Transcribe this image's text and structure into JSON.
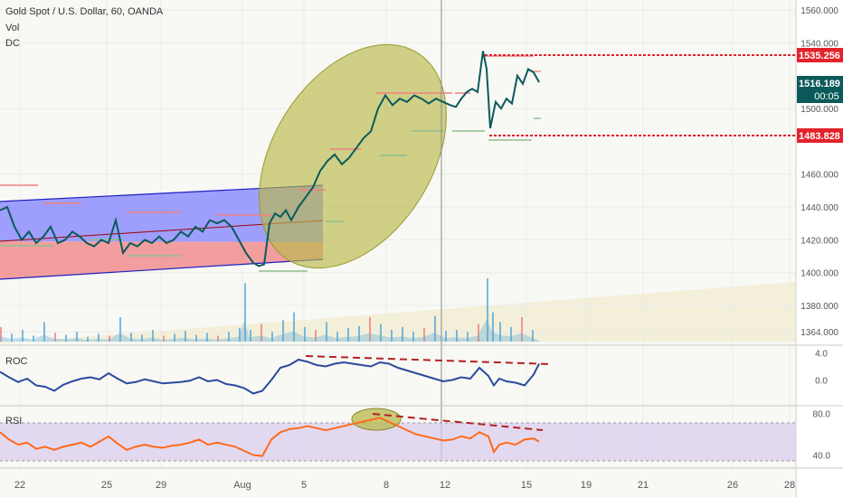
{
  "header": {
    "title": "Gold Spot / U.S. Dollar, 60, OANDA",
    "vol_label": "Vol",
    "dc_label": "DC"
  },
  "price_badges": {
    "upper": "1535.256",
    "current": "1516.189",
    "countdown": "00:05",
    "lower": "1483.828"
  },
  "colors": {
    "price_line": "#0b5a5a",
    "roc_line": "#2a4b9c",
    "rsi_line": "#ff6a1a",
    "badge_red": "#e3222b",
    "badge_teal": "#0b5a5a",
    "channel_upper": "#8080ff",
    "channel_lower": "#f08080",
    "ellipse": "#b8b84a",
    "volume": "#5aa9d8"
  },
  "chart_data": [
    {
      "type": "line",
      "name": "price",
      "x_ticks": [
        "22",
        "25",
        "29",
        "Aug",
        "5",
        "8",
        "12",
        "15",
        "19",
        "21",
        "26",
        "28"
      ],
      "y_ticks": [
        "1560.000",
        "1540.000",
        "1500.000",
        "1460.000",
        "1440.000",
        "1420.000",
        "1400.000",
        "1380.000",
        "1364.000"
      ],
      "ylim": [
        1358,
        1565
      ],
      "x": [
        0,
        8,
        16,
        24,
        32,
        40,
        48,
        56,
        64,
        72,
        80,
        88,
        96,
        104,
        112,
        120,
        128,
        136,
        144,
        152,
        160,
        168,
        176,
        184,
        192,
        200,
        208,
        216,
        224,
        232,
        240,
        248,
        256,
        264,
        272,
        280,
        286,
        292,
        298,
        304,
        310,
        316,
        322,
        330,
        338,
        346,
        354,
        362,
        370,
        378,
        386,
        394,
        402,
        410,
        418,
        426,
        434,
        442,
        450,
        458,
        466,
        474,
        482,
        490,
        498,
        504,
        510,
        516,
        522,
        528,
        534,
        538,
        542,
        548,
        554,
        560,
        566,
        572,
        578,
        584,
        590,
        596
      ],
      "y": [
        1438,
        1440,
        1428,
        1420,
        1425,
        1418,
        1422,
        1428,
        1418,
        1420,
        1425,
        1422,
        1418,
        1416,
        1420,
        1418,
        1432,
        1412,
        1418,
        1416,
        1420,
        1418,
        1422,
        1418,
        1420,
        1425,
        1422,
        1428,
        1425,
        1432,
        1430,
        1432,
        1428,
        1420,
        1412,
        1406,
        1404,
        1405,
        1430,
        1436,
        1434,
        1438,
        1432,
        1440,
        1446,
        1452,
        1462,
        1468,
        1472,
        1466,
        1470,
        1476,
        1482,
        1486,
        1500,
        1508,
        1502,
        1506,
        1504,
        1508,
        1506,
        1503,
        1506,
        1504,
        1502,
        1501,
        1506,
        1510,
        1512,
        1510,
        1535,
        1524,
        1488,
        1504,
        1500,
        1506,
        1503,
        1520,
        1515,
        1524,
        1522,
        1516
      ]
    },
    {
      "type": "bar",
      "name": "volume",
      "x": [
        0,
        12,
        24,
        36,
        48,
        60,
        72,
        84,
        96,
        108,
        120,
        132,
        144,
        156,
        168,
        180,
        192,
        204,
        216,
        228,
        240,
        252,
        264,
        270,
        276,
        288,
        300,
        312,
        324,
        336,
        348,
        360,
        372,
        384,
        396,
        408,
        420,
        432,
        444,
        456,
        468,
        480,
        492,
        504,
        516,
        528,
        538,
        544,
        552,
        564,
        576,
        588
      ],
      "values": [
        15,
        8,
        12,
        6,
        20,
        9,
        7,
        10,
        5,
        8,
        6,
        25,
        9,
        7,
        12,
        6,
        8,
        11,
        7,
        9,
        6,
        10,
        14,
        60,
        12,
        18,
        10,
        22,
        30,
        15,
        12,
        20,
        10,
        14,
        16,
        25,
        18,
        12,
        15,
        10,
        14,
        26,
        11,
        12,
        10,
        18,
        65,
        30,
        20,
        15,
        25,
        12
      ]
    },
    {
      "type": "line",
      "name": "ROC",
      "y_ticks": [
        "4.0",
        "0.0"
      ],
      "ylim": [
        -3.4,
        4.6
      ],
      "x": [
        0,
        10,
        20,
        30,
        40,
        50,
        60,
        70,
        80,
        90,
        100,
        110,
        120,
        130,
        140,
        150,
        160,
        170,
        180,
        190,
        200,
        210,
        220,
        230,
        240,
        250,
        260,
        270,
        280,
        290,
        300,
        310,
        320,
        330,
        340,
        350,
        360,
        370,
        380,
        390,
        400,
        410,
        420,
        430,
        440,
        450,
        460,
        470,
        480,
        490,
        500,
        510,
        520,
        530,
        540,
        546,
        552,
        560,
        570,
        580,
        590,
        596
      ],
      "y": [
        1.2,
        0.4,
        -0.3,
        0.2,
        -0.8,
        -1.0,
        -1.6,
        -0.7,
        -0.2,
        0.2,
        0.4,
        0.1,
        1.0,
        0.2,
        -0.5,
        -0.3,
        0.1,
        -0.2,
        -0.5,
        -0.4,
        -0.3,
        -0.1,
        0.4,
        -0.2,
        0.0,
        -0.6,
        -0.8,
        -1.2,
        -2.0,
        -1.6,
        0.0,
        1.8,
        2.2,
        3.0,
        2.7,
        2.2,
        2.0,
        2.4,
        2.6,
        2.4,
        2.2,
        2.0,
        2.6,
        2.4,
        1.8,
        1.4,
        1.0,
        0.6,
        0.2,
        -0.2,
        0.0,
        0.4,
        0.2,
        1.8,
        0.6,
        -0.8,
        0.2,
        -0.2,
        -0.4,
        -0.8,
        0.8,
        2.4
      ]
    },
    {
      "type": "line",
      "name": "RSI",
      "y_ticks": [
        "80.0",
        "40.0"
      ],
      "ylim": [
        30,
        85
      ],
      "x": [
        0,
        10,
        20,
        30,
        40,
        50,
        60,
        70,
        80,
        90,
        100,
        110,
        120,
        130,
        140,
        150,
        160,
        170,
        180,
        190,
        200,
        210,
        220,
        230,
        240,
        250,
        260,
        270,
        280,
        290,
        300,
        310,
        320,
        330,
        340,
        350,
        360,
        370,
        380,
        390,
        400,
        410,
        420,
        430,
        440,
        450,
        460,
        470,
        480,
        490,
        500,
        510,
        520,
        530,
        540,
        546,
        552,
        560,
        570,
        580,
        590,
        596
      ],
      "y": [
        62,
        55,
        50,
        52,
        46,
        48,
        45,
        48,
        50,
        52,
        48,
        53,
        58,
        51,
        45,
        48,
        50,
        48,
        47,
        49,
        50,
        52,
        55,
        50,
        52,
        50,
        48,
        44,
        40,
        39,
        55,
        62,
        65,
        66,
        68,
        66,
        64,
        66,
        68,
        70,
        72,
        74,
        76,
        72,
        68,
        64,
        60,
        58,
        56,
        54,
        55,
        58,
        56,
        62,
        58,
        43,
        50,
        52,
        50,
        55,
        56,
        53
      ]
    }
  ]
}
